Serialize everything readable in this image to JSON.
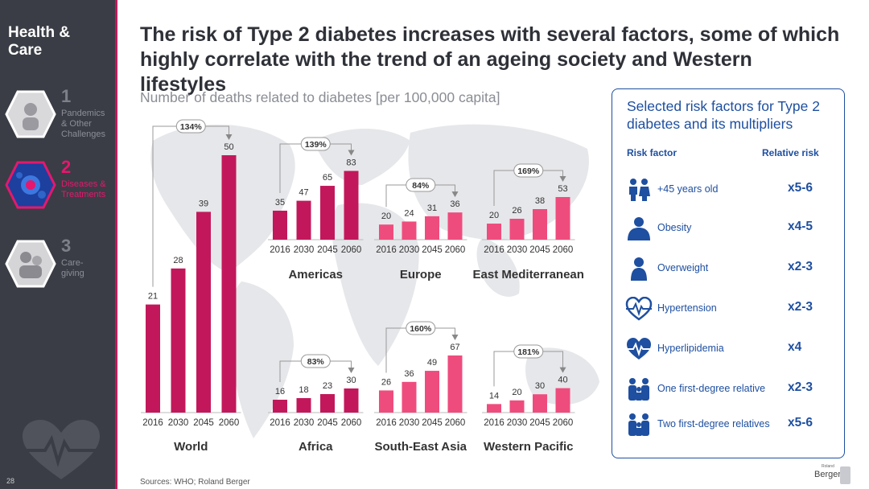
{
  "sidebar": {
    "brand": "Health &\nCare",
    "items": [
      {
        "num": "1",
        "label": "Pandemics\n& Other\nChallenges",
        "active": false
      },
      {
        "num": "2",
        "label": "Diseases &\nTreatments",
        "active": true
      },
      {
        "num": "3",
        "label": "Care-\ngiving",
        "active": false
      }
    ],
    "page_number": "28"
  },
  "header": {
    "title": "The risk of Type 2 diabetes increases with several factors, some of which highly correlate with the trend of an ageing society and Western lifestyles",
    "subtitle": "Number of deaths related to diabetes [per 100,000 capita]"
  },
  "footer": {
    "sources": "Sources: WHO; Roland Berger"
  },
  "colors": {
    "dark_bar": "#c2185b",
    "light_bar": "#ef4c7e",
    "accent": "#e4186e",
    "blue": "#1e4fa0",
    "sidebar": "#3a3d45"
  },
  "chart_data": [
    {
      "type": "bar",
      "title": "World",
      "categories": [
        "2016",
        "2030",
        "2045",
        "2060"
      ],
      "values": [
        21,
        28,
        39,
        50
      ],
      "growth_label": "134%"
    },
    {
      "type": "bar",
      "title": "Americas",
      "categories": [
        "2016",
        "2030",
        "2045",
        "2060"
      ],
      "values": [
        35,
        47,
        65,
        83
      ],
      "growth_label": "139%"
    },
    {
      "type": "bar",
      "title": "Europe",
      "categories": [
        "2016",
        "2030",
        "2045",
        "2060"
      ],
      "values": [
        20,
        24,
        31,
        36
      ],
      "growth_label": "84%"
    },
    {
      "type": "bar",
      "title": "East Mediterranean",
      "categories": [
        "2016",
        "2030",
        "2045",
        "2060"
      ],
      "values": [
        20,
        26,
        38,
        53
      ],
      "growth_label": "169%"
    },
    {
      "type": "bar",
      "title": "Africa",
      "categories": [
        "2016",
        "2030",
        "2045",
        "2060"
      ],
      "values": [
        16,
        18,
        23,
        30
      ],
      "growth_label": "83%"
    },
    {
      "type": "bar",
      "title": "South-East Asia",
      "categories": [
        "2016",
        "2030",
        "2045",
        "2060"
      ],
      "values": [
        26,
        36,
        49,
        67
      ],
      "growth_label": "160%"
    },
    {
      "type": "bar",
      "title": "Western Pacific",
      "categories": [
        "2016",
        "2030",
        "2045",
        "2060"
      ],
      "values": [
        14,
        20,
        30,
        40
      ],
      "growth_label": "181%"
    }
  ],
  "risk_panel": {
    "title": "Selected risk factors for Type 2 diabetes and its multipliers",
    "col_factor": "Risk factor",
    "col_risk": "Relative risk",
    "rows": [
      {
        "label": "+45 years old",
        "value": "x5-6",
        "icon": "elderly-couple-icon"
      },
      {
        "label": "Obesity",
        "value": "x4-5",
        "icon": "obese-person-icon"
      },
      {
        "label": "Overweight",
        "value": "x2-3",
        "icon": "person-icon"
      },
      {
        "label": "Hypertension",
        "value": "x2-3",
        "icon": "heartbeat-icon"
      },
      {
        "label": "Hyperlipidemia",
        "value": "x4",
        "icon": "heart-pulse-icon"
      },
      {
        "label": "One first-degree relative",
        "value": "x2-3",
        "icon": "family-icon"
      },
      {
        "label": "Two first-degree relatives",
        "value": "x5-6",
        "icon": "family-icon"
      }
    ]
  },
  "logo": {
    "small": "Roland",
    "main": "Berger"
  }
}
